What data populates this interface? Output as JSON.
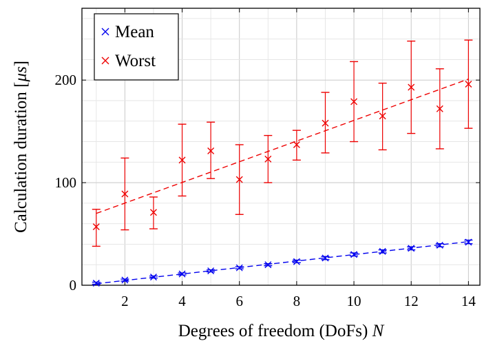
{
  "chart_data": {
    "type": "scatter",
    "xlabel_prefix": "Degrees of freedom (DoFs) ",
    "xlabel_var": "N",
    "ylabel_prefix": "Calculation duration [",
    "ylabel_unit": "μs",
    "ylabel_suffix": "]",
    "xlim": [
      0.5,
      14.4
    ],
    "ylim": [
      0,
      270
    ],
    "x_ticks": [
      2,
      4,
      6,
      8,
      10,
      12,
      14
    ],
    "y_ticks": [
      0,
      100,
      200
    ],
    "x_tick_labels": [
      "2",
      "4",
      "6",
      "8",
      "10",
      "12",
      "14"
    ],
    "y_tick_labels": [
      "0",
      "100",
      "200"
    ],
    "grid": true,
    "legend_position": "top-left",
    "series": [
      {
        "name": "Mean",
        "color": "#0000ee",
        "marker": "x",
        "x": [
          1,
          2,
          3,
          4,
          5,
          6,
          7,
          8,
          9,
          10,
          11,
          12,
          13,
          14
        ],
        "y": [
          2,
          5,
          8,
          11,
          14,
          17,
          20,
          23,
          26.5,
          30,
          33,
          36,
          39,
          42
        ],
        "err_low": [
          1,
          4,
          7,
          10,
          13,
          16,
          19,
          22,
          25,
          28.5,
          31.5,
          34.5,
          37.5,
          40.5
        ],
        "err_high": [
          3,
          6,
          9,
          12,
          15,
          18,
          21,
          24.5,
          28,
          31.5,
          34.5,
          37.5,
          40.5,
          44
        ],
        "trend": [
          1.5,
          42.5
        ]
      },
      {
        "name": "Worst",
        "color": "#ee0000",
        "marker": "x",
        "x": [
          1,
          2,
          3,
          4,
          5,
          6,
          7,
          8,
          9,
          10,
          11,
          12,
          13,
          14
        ],
        "y": [
          57,
          89,
          71,
          122,
          131,
          103,
          123,
          137,
          158,
          179,
          165,
          193,
          172,
          196
        ],
        "err_low": [
          38,
          54,
          55,
          87,
          104,
          69,
          100,
          122,
          129,
          140,
          132,
          148,
          133,
          153
        ],
        "err_high": [
          74,
          124,
          86,
          157,
          159,
          137,
          146,
          151,
          188,
          218,
          197,
          238,
          211,
          239
        ],
        "trend": [
          70,
          201
        ]
      }
    ]
  }
}
